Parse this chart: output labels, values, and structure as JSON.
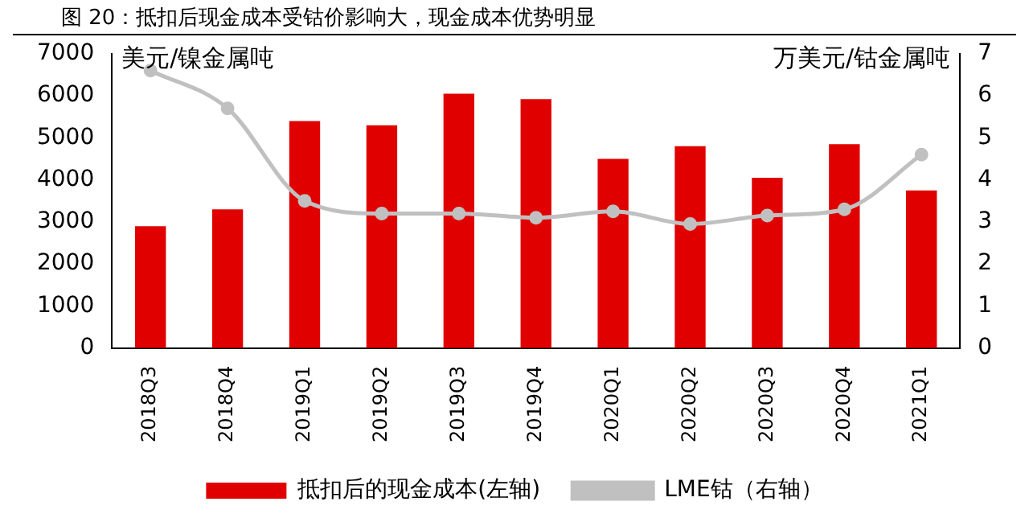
{
  "chart_data": {
    "type": "bar",
    "title": "图 20：抵扣后现金成本受钴价影响大，现金成本优势明显",
    "ylabel": "美元/镍金属吨",
    "y2label": "万美元/钴金属吨",
    "categories": [
      "2018Q3",
      "2018Q4",
      "2019Q1",
      "2019Q2",
      "2019Q3",
      "2019Q4",
      "2020Q1",
      "2020Q2",
      "2020Q3",
      "2020Q4",
      "2021Q1"
    ],
    "series": [
      {
        "name": "抵扣后的现金成本(左轴)",
        "color": "#e00000",
        "values": [
          2900,
          3300,
          5400,
          5300,
          6050,
          5920,
          4500,
          4800,
          4050,
          4850,
          3750
        ]
      },
      {
        "name": "LME钴（右轴）",
        "type": "line",
        "axis": "y2",
        "color": "#c0c0c0",
        "marker": "circle",
        "values": [
          6.6,
          5.7,
          3.5,
          3.2,
          3.2,
          3.1,
          3.25,
          2.95,
          3.15,
          3.3,
          4.6
        ]
      }
    ],
    "ylim": [
      0,
      7000
    ],
    "yticks": [
      0,
      1000,
      2000,
      3000,
      4000,
      5000,
      6000,
      7000
    ],
    "y2lim": [
      0,
      7
    ],
    "y2ticks": [
      0,
      1,
      2,
      3,
      4,
      5,
      6,
      7
    ],
    "grid": false,
    "legend": "bottom"
  }
}
